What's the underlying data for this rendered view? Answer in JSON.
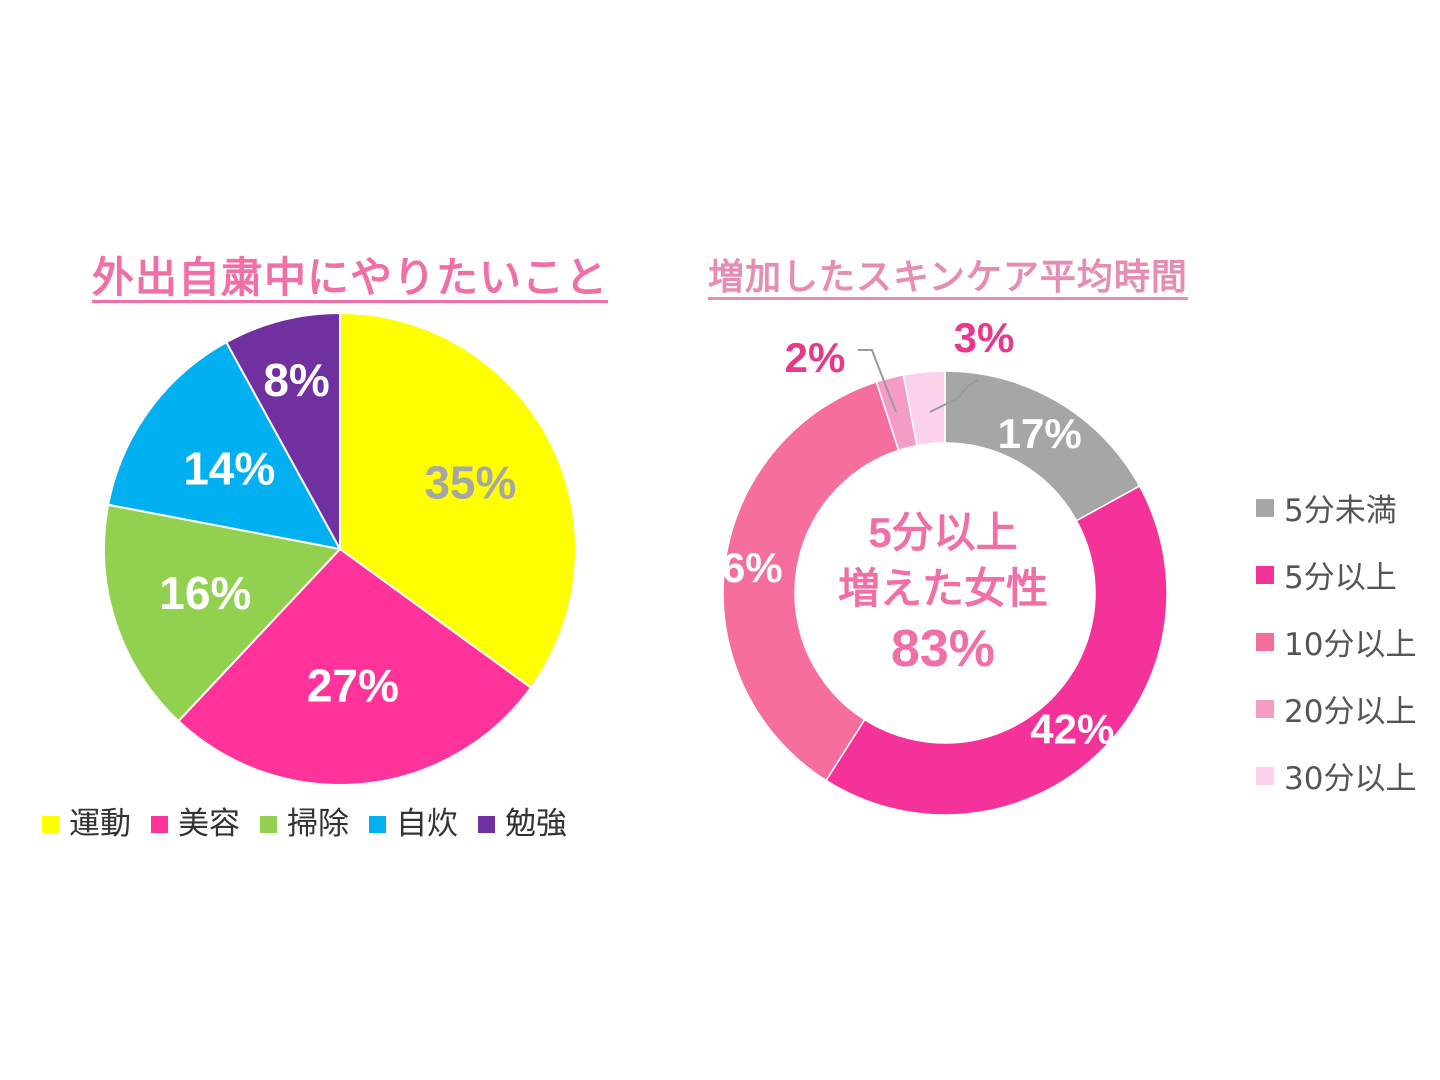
{
  "colors": {
    "title1": "#f06fa6",
    "title2": "#e78cb4"
  },
  "chart_data": [
    {
      "type": "pie",
      "title": "外出自粛中にやりたいこと",
      "legend_position": "bottom",
      "slices": [
        {
          "label": "運動",
          "value": 35,
          "display": "35%",
          "color": "#ffff00",
          "label_color": "#a6a6a6"
        },
        {
          "label": "美容",
          "value": 27,
          "display": "27%",
          "color": "#ff3399",
          "label_color": "#ffffff"
        },
        {
          "label": "掃除",
          "value": 16,
          "display": "16%",
          "color": "#92d050",
          "label_color": "#ffffff"
        },
        {
          "label": "自炊",
          "value": 14,
          "display": "14%",
          "color": "#00b0f0",
          "label_color": "#ffffff"
        },
        {
          "label": "勉強",
          "value": 8,
          "display": "8%",
          "color": "#7030a0",
          "label_color": "#ffffff"
        }
      ]
    },
    {
      "type": "pie",
      "donut": true,
      "title": "増加したスキンケア平均時間",
      "legend_position": "right",
      "center_text": [
        "5分以上",
        "増えた女性",
        "83%"
      ],
      "slices": [
        {
          "label": "5分未満",
          "value": 17,
          "display": "17%",
          "color": "#a6a6a6",
          "label_color": "#ffffff"
        },
        {
          "label": "5分以上",
          "value": 42,
          "display": "42%",
          "color": "#f5329a",
          "label_color": "#ffffff"
        },
        {
          "label": "10分以上",
          "value": 36,
          "display": "36%",
          "color": "#f56e9d",
          "label_color": "#ffffff"
        },
        {
          "label": "20分以上",
          "value": 2,
          "display": "2%",
          "color": "#f49cc6",
          "label_color": "#e8388a"
        },
        {
          "label": "30分以上",
          "value": 3,
          "display": "3%",
          "color": "#fbd1ec",
          "label_color": "#e8388a"
        }
      ]
    }
  ]
}
